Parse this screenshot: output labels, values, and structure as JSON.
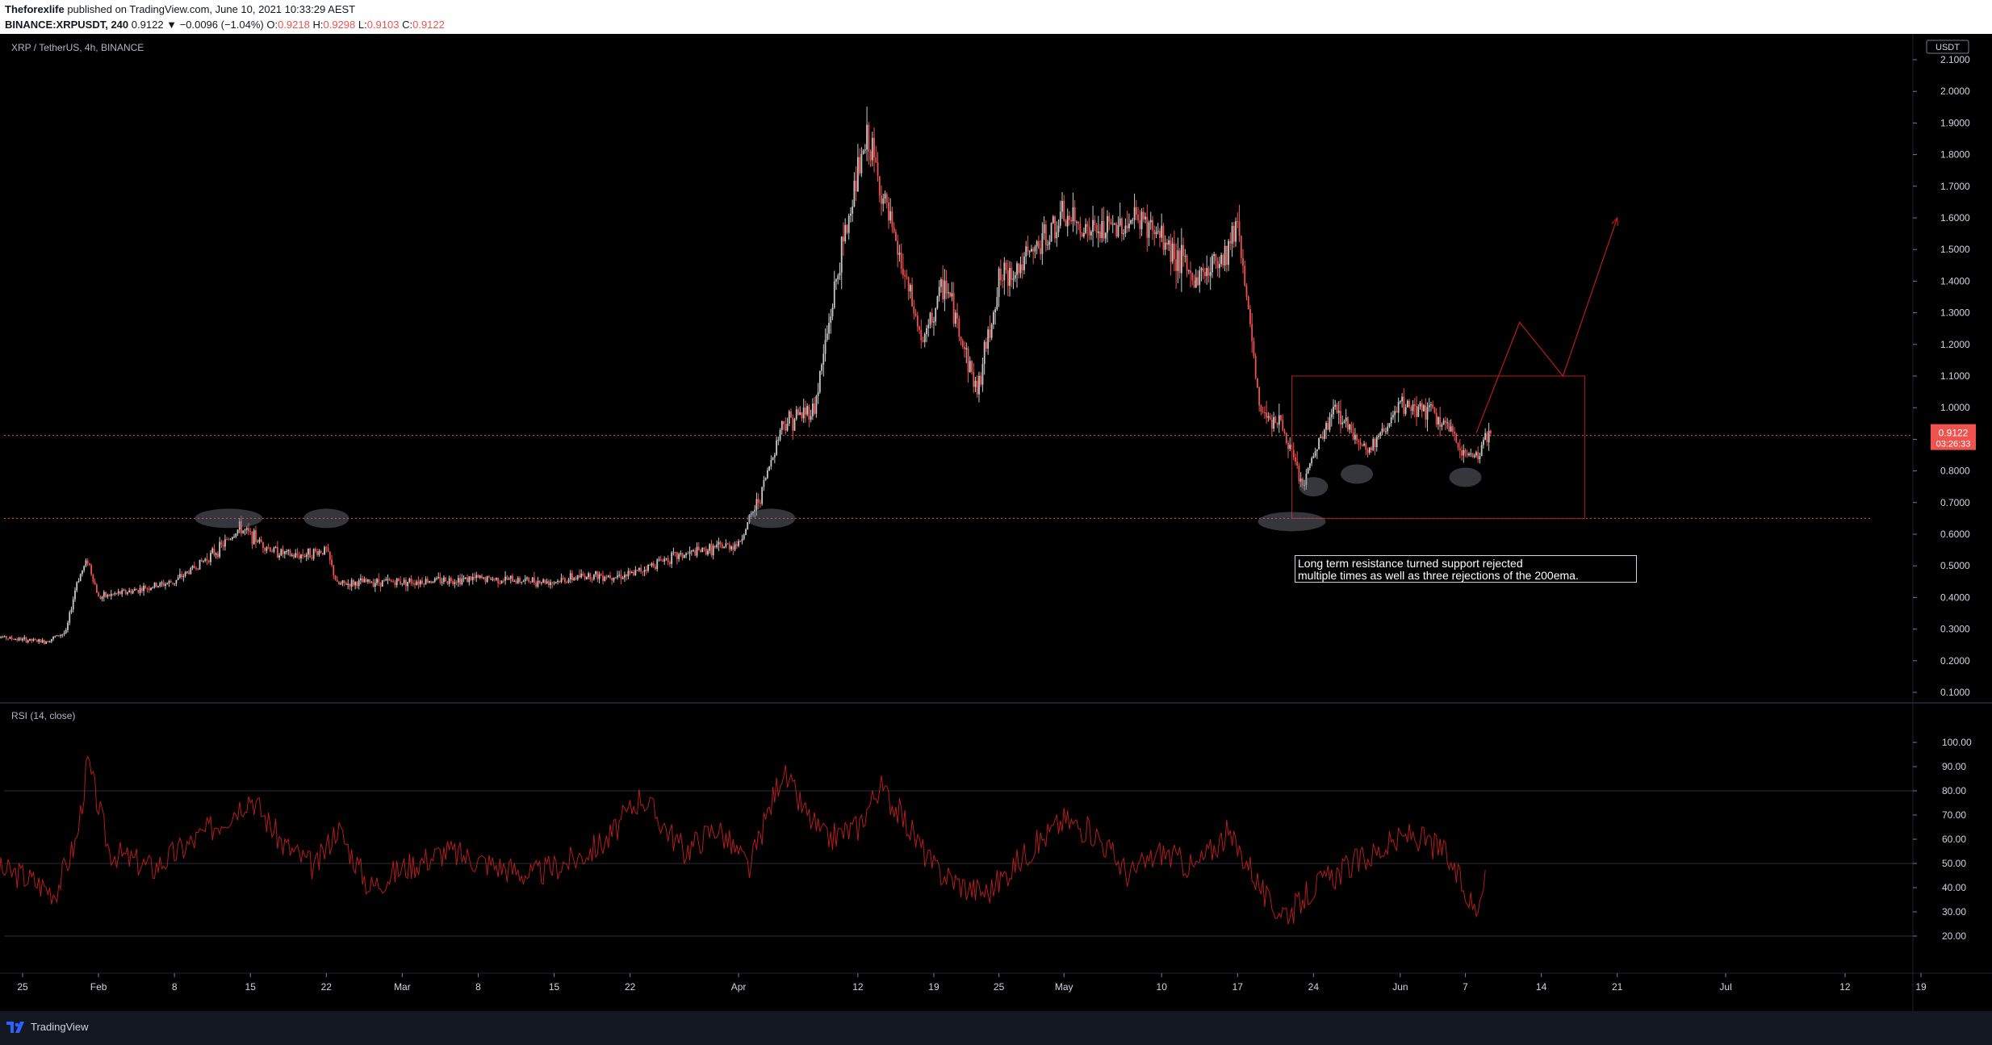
{
  "header": {
    "publisher": "Theforexlife",
    "published_text": "published on TradingView.com, June 10, 2021 10:33:29 AEST",
    "symbol": "BINANCE:XRPUSDT, 240",
    "last": "0.9122",
    "change": "▼ −0.0096 (−1.04%)",
    "o_label": "O:",
    "o_value": "0.9218",
    "h_label": "H:",
    "h_value": "0.9298",
    "l_label": "L:",
    "l_value": "0.9103",
    "c_label": "C:",
    "c_value": "0.9122"
  },
  "price_pane": {
    "legend": "XRP / TetherUS, 4h, BINANCE",
    "currency": "USDT",
    "current_price": "0.9122",
    "countdown": "03:26:33"
  },
  "rsi_pane": {
    "legend": "RSI (14, close)"
  },
  "annotation": {
    "line1": "Long term resistance turned support rejected",
    "line2": "multiple times as well as three rejections of the 200ema."
  },
  "footer": {
    "brand": "TradingView"
  },
  "colors": {
    "up": "#c8c8c8",
    "down": "#ef5350",
    "drawing": "#b71c1c",
    "rsi_line": "#b71c1c",
    "background": "#000000"
  },
  "chart_data": [
    {
      "type": "candlestick",
      "interval": "4h",
      "price_axis_ticks": [
        0.1,
        0.2,
        0.3,
        0.4,
        0.5,
        0.6,
        0.7,
        0.8,
        0.9,
        1.0,
        1.1,
        1.2,
        1.3,
        1.4,
        1.5,
        1.6,
        1.7,
        1.8,
        1.9,
        2.0,
        2.1
      ],
      "price_axis_labels": [
        "0.1000",
        "0.2000",
        "0.3000",
        "0.4000",
        "0.5000",
        "0.6000",
        "0.7000",
        "0.8000",
        "0.9000",
        "1.0000",
        "1.1000",
        "1.2000",
        "1.3000",
        "1.4000",
        "1.5000",
        "1.6000",
        "1.7000",
        "1.8000",
        "1.9000",
        "2.0000",
        "2.1000"
      ],
      "ylim": [
        0.08,
        2.15
      ],
      "time_axis_labels": [
        "25",
        "Feb",
        "8",
        "15",
        "22",
        "Mar",
        "8",
        "15",
        "22",
        "Apr",
        "12",
        "19",
        "25",
        "May",
        "10",
        "17",
        "24",
        "Jun",
        "7",
        "14",
        "21",
        "Jul",
        "12",
        "19"
      ],
      "time_axis_dates": [
        "2021-01-25",
        "2021-02-01",
        "2021-02-08",
        "2021-02-15",
        "2021-02-22",
        "2021-03-01",
        "2021-03-08",
        "2021-03-15",
        "2021-03-22",
        "2021-04-01",
        "2021-04-12",
        "2021-04-19",
        "2021-04-25",
        "2021-05-01",
        "2021-05-10",
        "2021-05-17",
        "2021-05-24",
        "2021-06-01",
        "2021-06-07",
        "2021-06-14",
        "2021-06-21",
        "2021-07-01",
        "2021-07-12",
        "2021-07-19"
      ],
      "close_series_daily": {
        "dates": [
          "2021-01-22",
          "2021-01-24",
          "2021-01-27",
          "2021-01-29",
          "2021-01-30",
          "2021-01-31",
          "2021-02-01",
          "2021-02-04",
          "2021-02-08",
          "2021-02-12",
          "2021-02-14",
          "2021-02-17",
          "2021-02-19",
          "2021-02-22",
          "2021-02-23",
          "2021-02-26",
          "2021-03-01",
          "2021-03-08",
          "2021-03-15",
          "2021-03-18",
          "2021-03-22",
          "2021-03-25",
          "2021-03-29",
          "2021-04-01",
          "2021-04-03",
          "2021-04-05",
          "2021-04-08",
          "2021-04-10",
          "2021-04-12",
          "2021-04-13",
          "2021-04-14",
          "2021-04-16",
          "2021-04-18",
          "2021-04-20",
          "2021-04-23",
          "2021-04-25",
          "2021-04-27",
          "2021-05-01",
          "2021-05-04",
          "2021-05-08",
          "2021-05-11",
          "2021-05-13",
          "2021-05-16",
          "2021-05-17",
          "2021-05-19",
          "2021-05-21",
          "2021-05-23",
          "2021-05-24",
          "2021-05-26",
          "2021-05-29",
          "2021-06-01",
          "2021-06-03",
          "2021-06-05",
          "2021-06-07",
          "2021-06-08",
          "2021-06-09"
        ],
        "close": [
          0.28,
          0.27,
          0.26,
          0.29,
          0.45,
          0.52,
          0.4,
          0.42,
          0.45,
          0.55,
          0.62,
          0.55,
          0.53,
          0.55,
          0.44,
          0.45,
          0.45,
          0.46,
          0.45,
          0.47,
          0.47,
          0.52,
          0.55,
          0.57,
          0.72,
          0.95,
          1.0,
          1.4,
          1.75,
          1.85,
          1.7,
          1.45,
          1.2,
          1.4,
          1.05,
          1.4,
          1.45,
          1.6,
          1.55,
          1.6,
          1.5,
          1.4,
          1.5,
          1.6,
          1.0,
          0.95,
          0.75,
          0.85,
          1.0,
          0.86,
          1.0,
          1.0,
          0.95,
          0.85,
          0.85,
          0.91
        ]
      },
      "last_price": 0.9122,
      "horizontal_levels": [
        0.65
      ],
      "zones": [
        {
          "from_date": "2021-05-22",
          "to_date": "2021-06-18",
          "low": 0.65,
          "high": 1.1
        }
      ],
      "projection_path": [
        {
          "date": "2021-06-08",
          "price": 0.92
        },
        {
          "date": "2021-06-12",
          "price": 1.27
        },
        {
          "date": "2021-06-16",
          "price": 1.1
        },
        {
          "date": "2021-06-21",
          "price": 1.6
        }
      ]
    },
    {
      "type": "line",
      "name": "RSI (14, close)",
      "y_axis_ticks": [
        20,
        30,
        40,
        50,
        60,
        70,
        80,
        90,
        100
      ],
      "y_axis_labels": [
        "20.00",
        "30.00",
        "40.00",
        "50.00",
        "60.00",
        "70.00",
        "80.00",
        "90.00",
        "100.00"
      ],
      "ylim": [
        15,
        100
      ],
      "bands": [
        80,
        50,
        20
      ],
      "x": [
        "2021-01-22",
        "2021-01-25",
        "2021-01-28",
        "2021-01-30",
        "2021-01-31",
        "2021-02-02",
        "2021-02-06",
        "2021-02-10",
        "2021-02-13",
        "2021-02-15",
        "2021-02-18",
        "2021-02-21",
        "2021-02-23",
        "2021-02-26",
        "2021-03-01",
        "2021-03-05",
        "2021-03-09",
        "2021-03-13",
        "2021-03-17",
        "2021-03-20",
        "2021-03-23",
        "2021-03-27",
        "2021-03-30",
        "2021-04-02",
        "2021-04-05",
        "2021-04-07",
        "2021-04-09",
        "2021-04-12",
        "2021-04-14",
        "2021-04-16",
        "2021-04-19",
        "2021-04-22",
        "2021-04-24",
        "2021-04-27",
        "2021-05-01",
        "2021-05-04",
        "2021-05-07",
        "2021-05-10",
        "2021-05-13",
        "2021-05-16",
        "2021-05-18",
        "2021-05-20",
        "2021-05-22",
        "2021-05-24",
        "2021-05-27",
        "2021-05-30",
        "2021-06-02",
        "2021-06-05",
        "2021-06-07",
        "2021-06-08",
        "2021-06-09"
      ],
      "values": [
        48,
        45,
        38,
        60,
        92,
        55,
        48,
        60,
        70,
        78,
        58,
        48,
        65,
        40,
        48,
        55,
        50,
        45,
        52,
        60,
        78,
        55,
        65,
        48,
        88,
        72,
        60,
        65,
        82,
        70,
        48,
        40,
        38,
        52,
        68,
        62,
        45,
        55,
        48,
        62,
        50,
        32,
        30,
        40,
        48,
        55,
        62,
        55,
        38,
        30,
        52
      ]
    }
  ]
}
